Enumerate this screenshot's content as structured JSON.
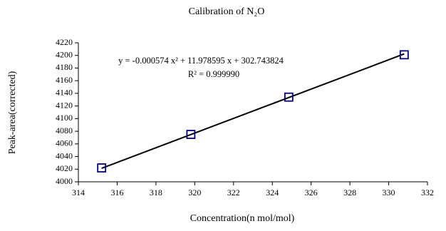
{
  "chart_data": {
    "type": "scatter",
    "title": "Calibration of N₂O",
    "xlabel": "Concentration(n mol/mol)",
    "ylabel": "Peak-area(corrected)",
    "annotations": [
      "y = -0.000574 x² + 11.978595 x + 302.743824",
      "R² = 0.999990"
    ],
    "series": [
      {
        "color": "#000080",
        "x": [
          315.2,
          319.8,
          324.85,
          330.8
        ],
        "values": [
          4022,
          4075,
          4134,
          4201
        ]
      }
    ],
    "fit": {
      "color": "#000000",
      "x": [
        315.2,
        330.8
      ],
      "values": [
        4021.4,
        4202.4
      ]
    },
    "xlim": [
      314,
      332
    ],
    "xticks": [
      314,
      316,
      318,
      320,
      322,
      324,
      326,
      328,
      330,
      332
    ],
    "ylim": [
      4000,
      4220
    ],
    "yticks": [
      4000,
      4020,
      4040,
      4060,
      4080,
      4100,
      4120,
      4140,
      4160,
      4180,
      4200,
      4220
    ]
  }
}
